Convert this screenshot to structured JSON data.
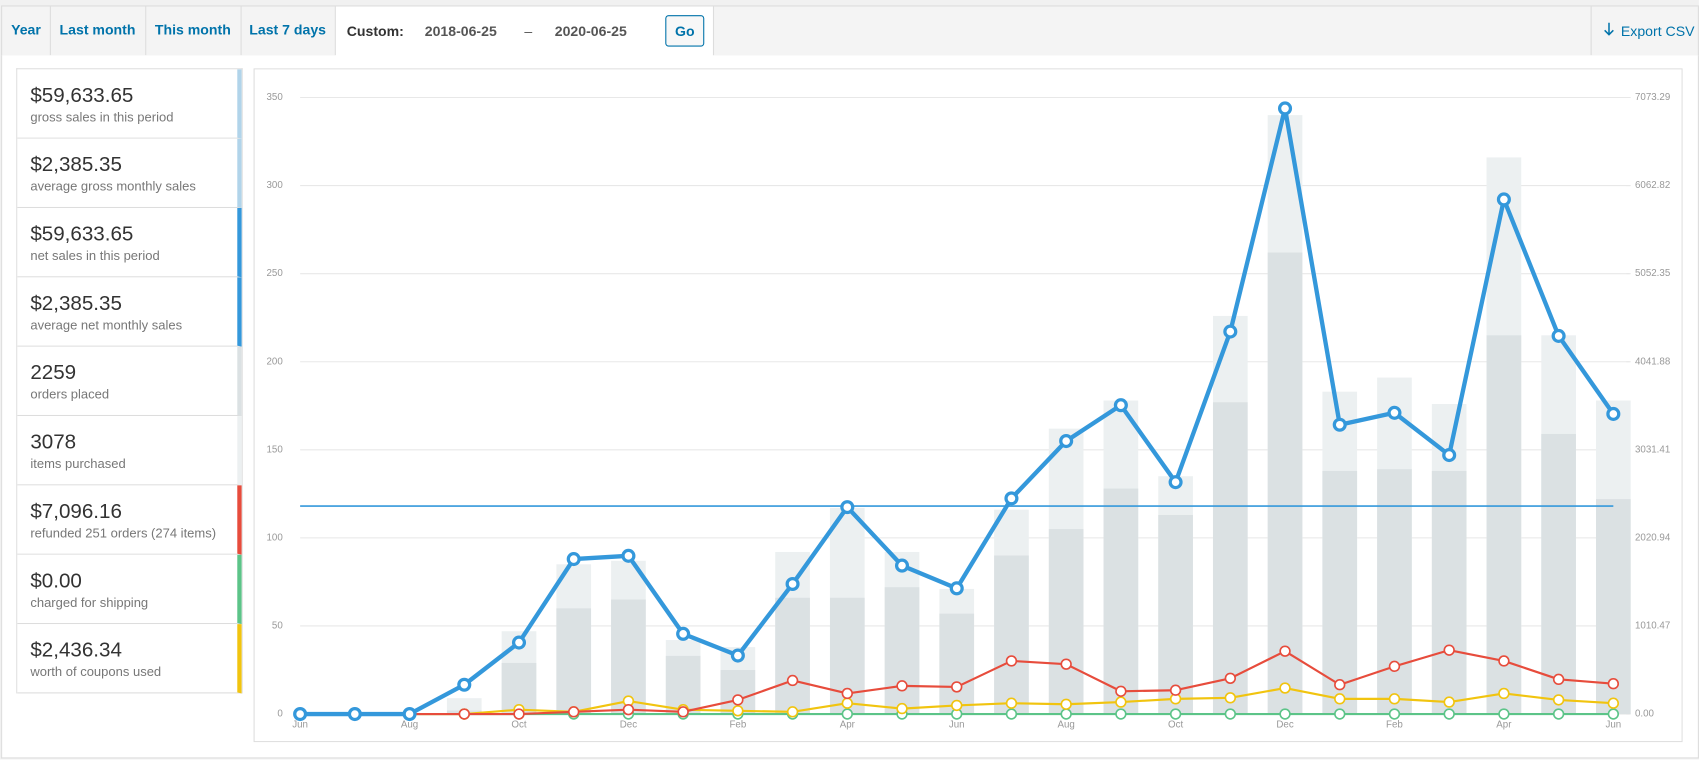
{
  "toolbar": {
    "tabs": [
      "Year",
      "Last month",
      "This month",
      "Last 7 days"
    ],
    "custom_label": "Custom:",
    "start_date": "2018-06-25",
    "separator": "–",
    "end_date": "2020-06-25",
    "go": "Go",
    "export": "Export CSV"
  },
  "summary": [
    {
      "value": "$59,633.65",
      "label": "gross sales in this period",
      "color": "#b1d4ea"
    },
    {
      "value": "$2,385.35",
      "label": "average gross monthly sales",
      "color": "#b1d4ea"
    },
    {
      "value": "$59,633.65",
      "label": "net sales in this period",
      "color": "#3498db"
    },
    {
      "value": "$2,385.35",
      "label": "average net monthly sales",
      "color": "#3498db"
    },
    {
      "value": "2259",
      "label": "orders placed",
      "color": "#dbe1e3"
    },
    {
      "value": "3078",
      "label": "items purchased",
      "color": "#ecf0f1"
    },
    {
      "value": "$7,096.16",
      "label": "refunded 251 orders (274 items)",
      "color": "#e74c3c"
    },
    {
      "value": "$0.00",
      "label": "charged for shipping",
      "color": "#5cc488"
    },
    {
      "value": "$2,436.34",
      "label": "worth of coupons used",
      "color": "#f1c40f"
    }
  ],
  "chart_data": {
    "type": "bar-line",
    "categories": [
      "Jun",
      null,
      "Aug",
      null,
      "Oct",
      null,
      "Dec",
      null,
      "Feb",
      null,
      "Apr",
      null,
      "Jun",
      null,
      "Aug",
      null,
      "Oct",
      null,
      "Dec",
      null,
      "Feb",
      null,
      "Apr",
      null,
      "Jun"
    ],
    "ylim": [
      0,
      350
    ],
    "yticks": [
      0,
      50,
      100,
      150,
      200,
      250,
      300,
      350
    ],
    "y2lim": [
      0,
      7073.29
    ],
    "y2ticks": [
      {
        "value": 0,
        "label": "0.00"
      },
      {
        "value": 1010.47,
        "label": "1010.47"
      },
      {
        "value": 2020.94,
        "label": "2020.94"
      },
      {
        "value": 3031.41,
        "label": "3031.41"
      },
      {
        "value": 4041.88,
        "label": "4041.88"
      },
      {
        "value": 5052.35,
        "label": "5052.35"
      },
      {
        "value": 6062.82,
        "label": "6062.82"
      },
      {
        "value": 7073.29,
        "label": "7073.29"
      }
    ],
    "grid": true,
    "series": [
      {
        "kind": "bar",
        "axis": "y",
        "color": "#ecf0f1",
        "values": [
          0,
          0,
          0,
          9,
          47,
          85,
          87,
          42,
          38,
          92,
          117,
          92,
          71,
          116,
          162,
          178,
          135,
          226,
          340,
          183,
          191,
          176,
          316,
          215,
          178
        ]
      },
      {
        "kind": "bar",
        "axis": "y",
        "color": "#dbe1e3",
        "values": [
          0,
          0,
          0,
          2,
          29,
          60,
          65,
          33,
          25,
          66,
          66,
          72,
          57,
          90,
          105,
          128,
          113,
          177,
          262,
          138,
          139,
          138,
          215,
          159,
          122
        ]
      },
      {
        "kind": "line",
        "axis": "y2",
        "color": "#5cc488",
        "values": [
          0,
          0,
          0,
          0,
          0,
          0,
          0,
          0,
          0,
          0,
          0,
          0,
          0,
          0,
          0,
          0,
          0,
          0,
          0,
          0,
          0,
          0,
          0,
          0,
          0
        ]
      },
      {
        "kind": "line",
        "axis": "y2",
        "color": "#f1c40f",
        "values": [
          0,
          0,
          0,
          0,
          50,
          25,
          149,
          50,
          37,
          25,
          124,
          62,
          99,
          124,
          112,
          137,
          174,
          186,
          298,
          174,
          174,
          137,
          236,
          162,
          124
        ]
      },
      {
        "kind": "line",
        "axis": "y2",
        "color": "#e74c3c",
        "values": [
          0,
          0,
          0,
          0,
          0,
          25,
          50,
          25,
          162,
          385,
          236,
          323,
          311,
          609,
          572,
          261,
          273,
          410,
          721,
          336,
          547,
          733,
          609,
          398,
          348
        ]
      },
      {
        "kind": "line",
        "axis": "y2",
        "color": "#3498db",
        "width": 4,
        "values": [
          0,
          0,
          0,
          336,
          820,
          1778,
          1815,
          920,
          671,
          1492,
          2374,
          1703,
          1442,
          2474,
          3132,
          3543,
          2660,
          4388,
          6948,
          3319,
          3456,
          2971,
          5904,
          4338,
          3443
        ]
      }
    ],
    "reference_lines": [
      {
        "value": 2385.35,
        "axis": "y2",
        "color": "#3498db"
      }
    ]
  }
}
